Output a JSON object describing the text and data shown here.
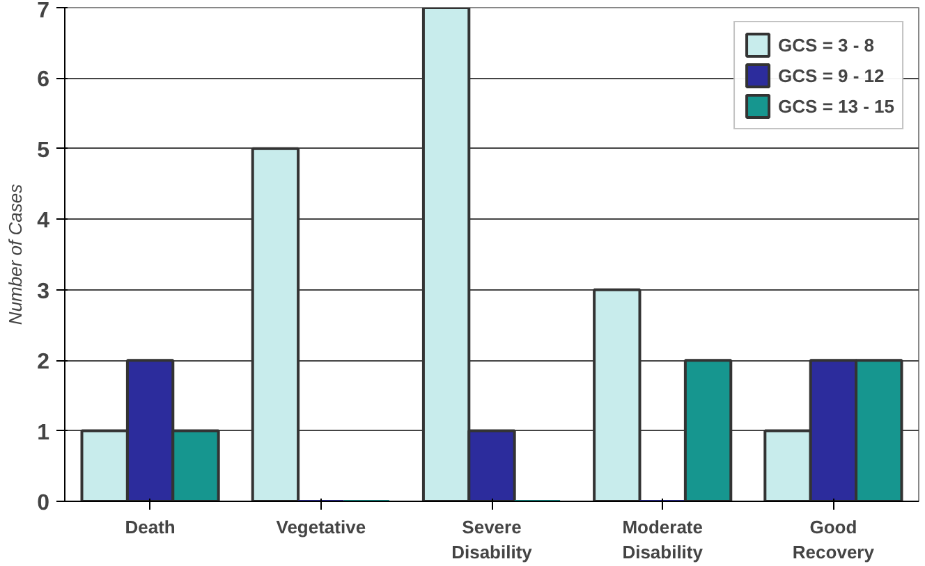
{
  "chart_data": {
    "type": "bar",
    "ylabel": "Number of Cases",
    "categories": [
      "Death",
      "Vegetative",
      "Severe Disability",
      "Moderate Disability",
      "Good Recovery"
    ],
    "series": [
      {
        "name": "GCS = 3 - 8",
        "color": "#c8ecec",
        "values": [
          1,
          5,
          7,
          3,
          1
        ]
      },
      {
        "name": "GCS = 9 - 12",
        "color": "#2c2c9c",
        "values": [
          2,
          0,
          1,
          0,
          2
        ]
      },
      {
        "name": "GCS = 13 - 15",
        "color": "#16968f",
        "values": [
          1,
          0,
          0,
          2,
          2
        ]
      }
    ],
    "ylim": [
      0,
      7
    ],
    "yticks": [
      0,
      1,
      2,
      3,
      4,
      5,
      6,
      7
    ],
    "grid": "y",
    "legend": "top right"
  }
}
